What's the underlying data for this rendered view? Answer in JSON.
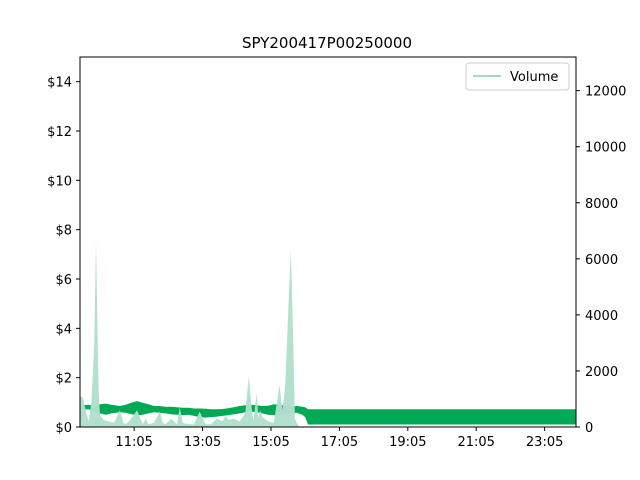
{
  "chart_data": {
    "type": "area",
    "title": "SPY200417P00250000",
    "x_tick_labels": [
      "11:05",
      "13:05",
      "15:05",
      "17:05",
      "19:05",
      "21:05",
      "23:05"
    ],
    "x_tick_times_min": [
      665,
      785,
      905,
      1025,
      1145,
      1265,
      1385
    ],
    "x_range_min": [
      570,
      1440
    ],
    "y_left": {
      "ylim": [
        0,
        15
      ],
      "tick_values": [
        0,
        2,
        4,
        6,
        8,
        10,
        12,
        14
      ],
      "tick_labels": [
        "$0",
        "$2",
        "$4",
        "$6",
        "$8",
        "$10",
        "$12",
        "$14"
      ]
    },
    "y_right": {
      "ylim": [
        0,
        13200
      ],
      "tick_values": [
        0,
        2000,
        4000,
        6000,
        8000,
        10000,
        12000
      ],
      "tick_labels": [
        "0",
        "2000",
        "4000",
        "6000",
        "8000",
        "10000",
        "12000"
      ]
    },
    "legend": {
      "position": "top-right",
      "entries": [
        "Volume"
      ]
    },
    "colors": {
      "price_band": "#00aa55",
      "volume": "#b2dfcc",
      "legend_line": "#a6d8c4"
    },
    "price_band": {
      "x_min": [
        570,
        585,
        595,
        605,
        615,
        625,
        640,
        650,
        660,
        670,
        680,
        690,
        700,
        710,
        720,
        730,
        740,
        750,
        760,
        770,
        780,
        790,
        800,
        810,
        820,
        830,
        840,
        850,
        860,
        870,
        880,
        890,
        900,
        910,
        920,
        930,
        940,
        950,
        960,
        965,
        970,
        1440
      ],
      "high": [
        0.88,
        0.9,
        0.85,
        0.92,
        0.95,
        0.9,
        0.85,
        0.9,
        0.98,
        1.05,
        0.98,
        0.92,
        0.85,
        0.85,
        0.82,
        0.82,
        0.8,
        0.78,
        0.78,
        0.75,
        0.75,
        0.74,
        0.72,
        0.72,
        0.73,
        0.76,
        0.8,
        0.85,
        0.88,
        0.9,
        0.88,
        0.85,
        0.86,
        0.92,
        0.9,
        0.86,
        0.82,
        0.85,
        0.82,
        0.8,
        0.72,
        0.72
      ],
      "low": [
        0.7,
        0.72,
        0.6,
        0.55,
        0.5,
        0.55,
        0.6,
        0.58,
        0.52,
        0.48,
        0.5,
        0.55,
        0.6,
        0.58,
        0.55,
        0.52,
        0.5,
        0.48,
        0.5,
        0.45,
        0.4,
        0.38,
        0.4,
        0.42,
        0.45,
        0.48,
        0.52,
        0.55,
        0.6,
        0.62,
        0.6,
        0.55,
        0.5,
        0.48,
        0.5,
        0.52,
        0.55,
        0.58,
        0.5,
        0.4,
        0.1,
        0.1
      ]
    },
    "volume": {
      "x_min": [
        570,
        575,
        580,
        585,
        590,
        595,
        598,
        601,
        603,
        605,
        608,
        612,
        620,
        630,
        640,
        646,
        650,
        656,
        670,
        680,
        685,
        690,
        700,
        710,
        715,
        720,
        730,
        740,
        745,
        750,
        760,
        770,
        780,
        790,
        800,
        810,
        820,
        826,
        830,
        840,
        850,
        860,
        866,
        870,
        874,
        880,
        883,
        886,
        890,
        900,
        910,
        920,
        925,
        930,
        935,
        940,
        944,
        947,
        950,
        952,
        955,
        960,
        964,
        966,
        970,
        1440
      ],
      "values": [
        1100,
        1050,
        600,
        200,
        900,
        3000,
        6650,
        3000,
        1200,
        400,
        350,
        250,
        200,
        150,
        600,
        150,
        100,
        200,
        600,
        100,
        300,
        100,
        150,
        550,
        150,
        100,
        300,
        100,
        700,
        150,
        100,
        100,
        550,
        100,
        100,
        300,
        200,
        400,
        250,
        300,
        200,
        500,
        1800,
        900,
        200,
        1200,
        300,
        600,
        350,
        200,
        150,
        1500,
        600,
        1500,
        4000,
        6350,
        3000,
        300,
        150,
        100,
        0,
        0,
        0,
        0,
        0,
        0
      ]
    }
  }
}
